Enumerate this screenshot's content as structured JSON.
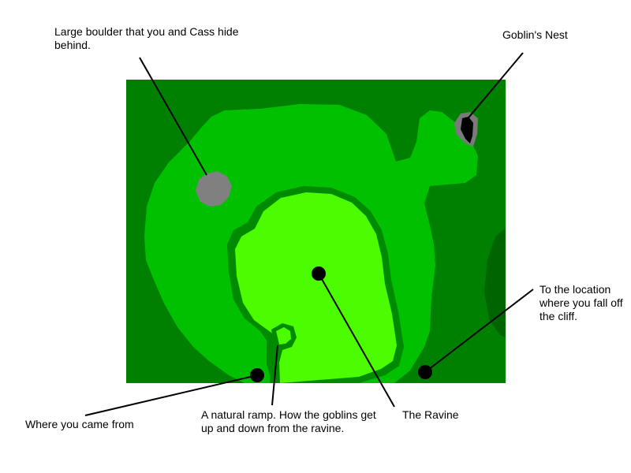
{
  "map": {
    "colors": {
      "background": "#ffffff",
      "forest": "#008000",
      "grass": "#00c000",
      "ravine_edge": "#008a00",
      "ravine_floor": "#4cfc00",
      "boulder": "#808080",
      "nest_rim": "#7a7a7a",
      "nest_hole": "#000000",
      "marker": "#000000",
      "leader_line": "#000000"
    },
    "annotations": {
      "boulder": "Large boulder that you and Cass hide behind.",
      "goblins_nest": "Goblin's Nest",
      "cliff": "To the location where you fall off the cliff.",
      "came_from": "Where you came from",
      "ramp": "A natural ramp. How the goblins get up and down from the ravine.",
      "ravine": "The Ravine"
    }
  }
}
